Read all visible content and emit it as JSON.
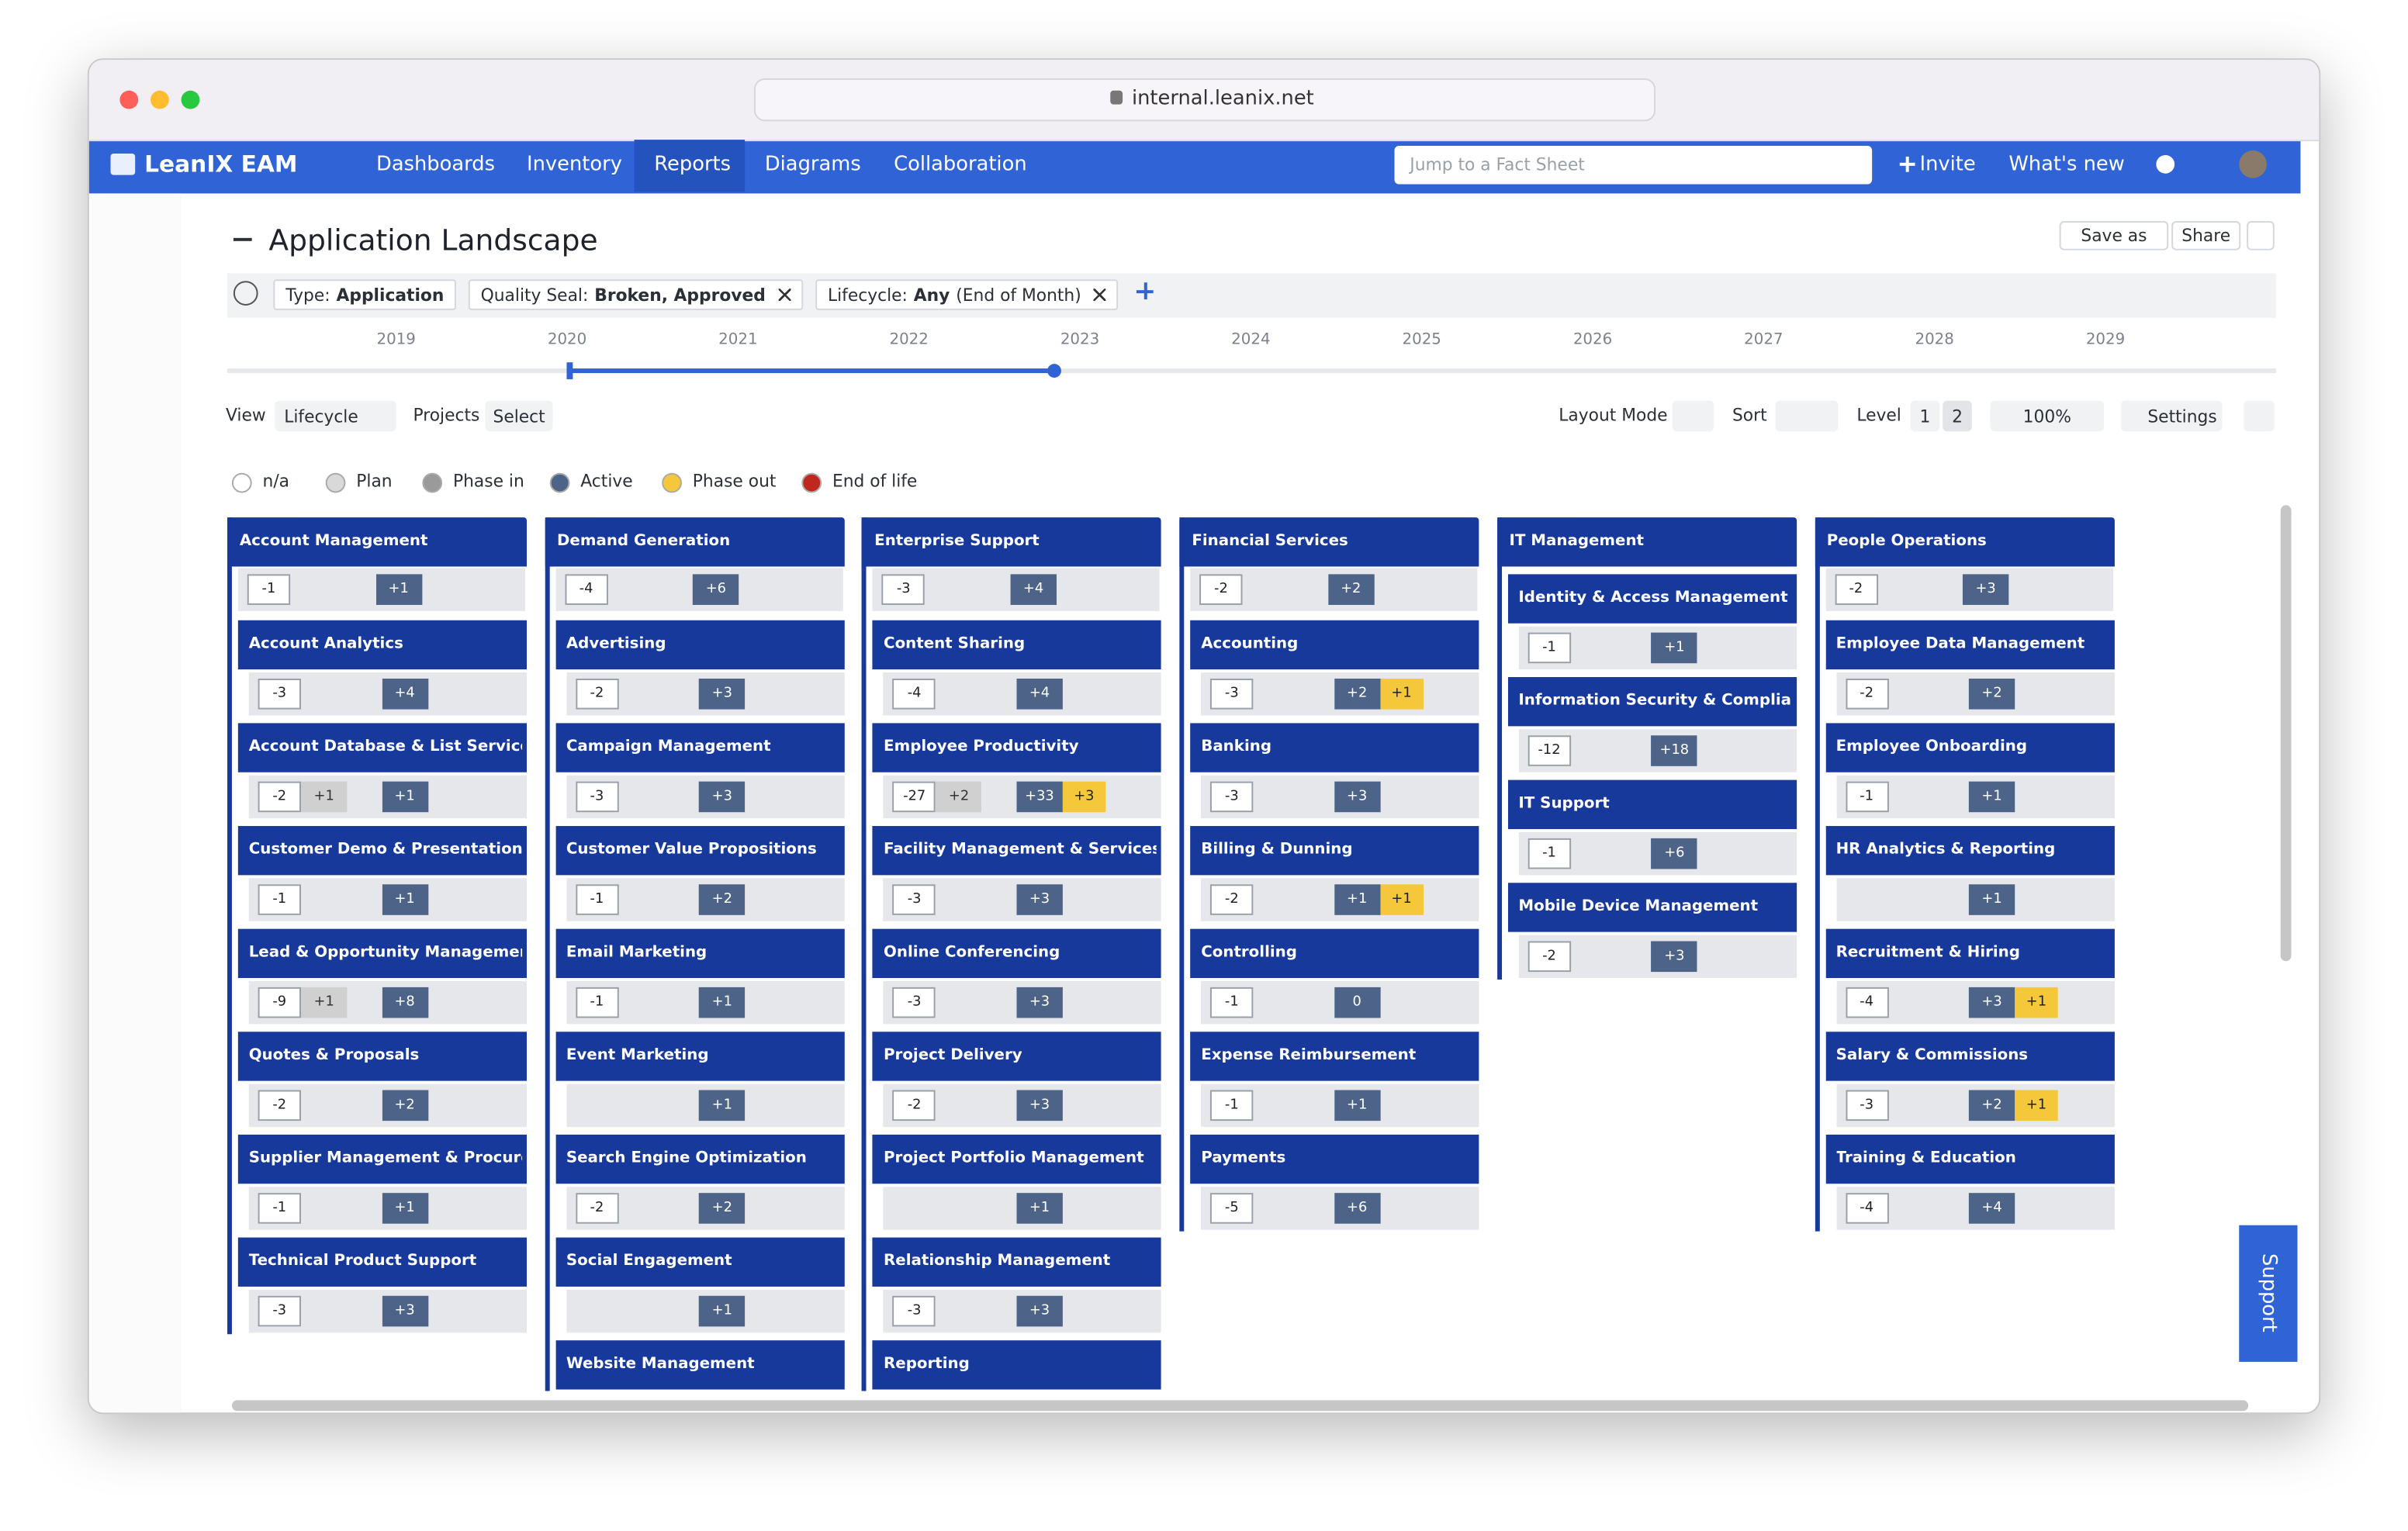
{
  "browser": {
    "url": "internal.leanix.net"
  },
  "nav": {
    "brand": "LeanIX EAM",
    "items": [
      "Dashboards",
      "Inventory",
      "Reports",
      "Diagrams",
      "Collaboration"
    ],
    "active": "Reports",
    "search_placeholder": "Jump to a Fact Sheet",
    "invite": "Invite",
    "whats_new": "What's new"
  },
  "report": {
    "title": "Application Landscape",
    "save_as": "Save as",
    "share": "Share",
    "filters": [
      {
        "label": "Type:",
        "value": "Application",
        "removable": false
      },
      {
        "label": "Quality Seal:",
        "value": "Broken, Approved",
        "removable": true
      },
      {
        "label": "Lifecycle:",
        "value": "Any",
        "suffix": "(End of Month)",
        "removable": true
      }
    ],
    "timeline_years": [
      "2019",
      "2020",
      "2021",
      "2022",
      "2023",
      "2024",
      "2025",
      "2026",
      "2027",
      "2028",
      "2029"
    ],
    "toolbar": {
      "view_label": "View",
      "view": "Lifecycle",
      "projects_label": "Projects",
      "projects": "Select",
      "layout_mode": "Layout Mode",
      "sort": "Sort",
      "level": "Level",
      "levels": [
        "1",
        "2"
      ],
      "zoom": "100%",
      "settings": "Settings"
    },
    "legend": [
      {
        "label": "n/a",
        "color": "#ffffff"
      },
      {
        "label": "Plan",
        "color": "#d9d9d9"
      },
      {
        "label": "Phase in",
        "color": "#9a9a9a"
      },
      {
        "label": "Active",
        "color": "#4d6488"
      },
      {
        "label": "Phase out",
        "color": "#f5c83c"
      },
      {
        "label": "End of life",
        "color": "#c0281e"
      }
    ],
    "columns": [
      {
        "title": "Account Management",
        "summary": [
          {
            "text": "-1",
            "kind": "box"
          },
          {
            "text": "+1",
            "kind": "active"
          }
        ],
        "cards": [
          {
            "title": "Account Analytics",
            "bar": [
              {
                "text": "-3",
                "kind": "box"
              },
              {
                "text": "+4",
                "kind": "active"
              }
            ]
          },
          {
            "title": "Account Database & List Services",
            "bar": [
              {
                "text": "-2",
                "kind": "box"
              },
              {
                "text": "+1",
                "kind": "phase-in"
              },
              {
                "text": "+1",
                "kind": "active"
              }
            ]
          },
          {
            "title": "Customer Demo & Presentation",
            "bar": [
              {
                "text": "-1",
                "kind": "box"
              },
              {
                "text": "+1",
                "kind": "active"
              }
            ]
          },
          {
            "title": "Lead & Opportunity Management",
            "bar": [
              {
                "text": "-9",
                "kind": "box"
              },
              {
                "text": "+1",
                "kind": "phase-in"
              },
              {
                "text": "+8",
                "kind": "active"
              }
            ]
          },
          {
            "title": "Quotes & Proposals",
            "bar": [
              {
                "text": "-2",
                "kind": "box"
              },
              {
                "text": "+2",
                "kind": "active"
              }
            ]
          },
          {
            "title": "Supplier Management & Procurem...",
            "bar": [
              {
                "text": "-1",
                "kind": "box"
              },
              {
                "text": "+1",
                "kind": "active"
              }
            ]
          },
          {
            "title": "Technical Product Support",
            "bar": [
              {
                "text": "-3",
                "kind": "box"
              },
              {
                "text": "+3",
                "kind": "active"
              }
            ]
          }
        ]
      },
      {
        "title": "Demand Generation",
        "summary": [
          {
            "text": "-4",
            "kind": "box"
          },
          {
            "text": "+6",
            "kind": "active"
          }
        ],
        "cards": [
          {
            "title": "Advertising",
            "bar": [
              {
                "text": "-2",
                "kind": "box"
              },
              {
                "text": "+3",
                "kind": "active"
              }
            ]
          },
          {
            "title": "Campaign Management",
            "bar": [
              {
                "text": "-3",
                "kind": "box"
              },
              {
                "text": "+3",
                "kind": "active"
              }
            ]
          },
          {
            "title": "Customer Value Propositions",
            "bar": [
              {
                "text": "-1",
                "kind": "box"
              },
              {
                "text": "+2",
                "kind": "active"
              }
            ]
          },
          {
            "title": "Email Marketing",
            "bar": [
              {
                "text": "-1",
                "kind": "box"
              },
              {
                "text": "+1",
                "kind": "active"
              }
            ]
          },
          {
            "title": "Event Marketing",
            "bar": [
              {
                "text": "+1",
                "kind": "active"
              }
            ]
          },
          {
            "title": "Search Engine Optimization",
            "bar": [
              {
                "text": "-2",
                "kind": "box"
              },
              {
                "text": "+2",
                "kind": "active"
              }
            ]
          },
          {
            "title": "Social Engagement",
            "bar": [
              {
                "text": "+1",
                "kind": "active"
              }
            ]
          },
          {
            "title": "Website Management",
            "bar": []
          }
        ]
      },
      {
        "title": "Enterprise Support",
        "summary": [
          {
            "text": "-3",
            "kind": "box"
          },
          {
            "text": "+4",
            "kind": "active"
          }
        ],
        "cards": [
          {
            "title": "Content Sharing",
            "bar": [
              {
                "text": "-4",
                "kind": "box"
              },
              {
                "text": "+4",
                "kind": "active"
              }
            ]
          },
          {
            "title": "Employee Productivity",
            "bar": [
              {
                "text": "-27",
                "kind": "box"
              },
              {
                "text": "+2",
                "kind": "phase-in"
              },
              {
                "text": "+33",
                "kind": "active"
              },
              {
                "text": "+3",
                "kind": "phase-out"
              }
            ]
          },
          {
            "title": "Facility Management & Services",
            "bar": [
              {
                "text": "-3",
                "kind": "box"
              },
              {
                "text": "+3",
                "kind": "active"
              }
            ]
          },
          {
            "title": "Online Conferencing",
            "bar": [
              {
                "text": "-3",
                "kind": "box"
              },
              {
                "text": "+3",
                "kind": "active"
              }
            ]
          },
          {
            "title": "Project Delivery",
            "bar": [
              {
                "text": "-2",
                "kind": "box"
              },
              {
                "text": "+3",
                "kind": "active"
              }
            ]
          },
          {
            "title": "Project Portfolio Management",
            "bar": [
              {
                "text": "+1",
                "kind": "active"
              }
            ]
          },
          {
            "title": "Relationship Management",
            "bar": [
              {
                "text": "-3",
                "kind": "box"
              },
              {
                "text": "+3",
                "kind": "active"
              }
            ]
          },
          {
            "title": "Reporting",
            "bar": []
          }
        ]
      },
      {
        "title": "Financial Services",
        "summary": [
          {
            "text": "-2",
            "kind": "box"
          },
          {
            "text": "+2",
            "kind": "active"
          }
        ],
        "cards": [
          {
            "title": "Accounting",
            "bar": [
              {
                "text": "-3",
                "kind": "box"
              },
              {
                "text": "+2",
                "kind": "active"
              },
              {
                "text": "+1",
                "kind": "phase-out"
              }
            ]
          },
          {
            "title": "Banking",
            "bar": [
              {
                "text": "-3",
                "kind": "box"
              },
              {
                "text": "+3",
                "kind": "active"
              }
            ]
          },
          {
            "title": "Billing & Dunning",
            "bar": [
              {
                "text": "-2",
                "kind": "box"
              },
              {
                "text": "+1",
                "kind": "active"
              },
              {
                "text": "+1",
                "kind": "phase-out"
              }
            ]
          },
          {
            "title": "Controlling",
            "bar": [
              {
                "text": "-1",
                "kind": "box"
              },
              {
                "text": "0",
                "kind": "active"
              }
            ]
          },
          {
            "title": "Expense Reimbursement",
            "bar": [
              {
                "text": "-1",
                "kind": "box"
              },
              {
                "text": "+1",
                "kind": "active"
              }
            ]
          },
          {
            "title": "Payments",
            "bar": [
              {
                "text": "-5",
                "kind": "box"
              },
              {
                "text": "+6",
                "kind": "active"
              }
            ]
          }
        ]
      },
      {
        "title": "IT Management",
        "cards": [
          {
            "title": "Identity & Access Management",
            "bar": [
              {
                "text": "-1",
                "kind": "box"
              },
              {
                "text": "+1",
                "kind": "active"
              }
            ]
          },
          {
            "title": "Information Security & Compliance",
            "bar": [
              {
                "text": "-12",
                "kind": "box"
              },
              {
                "text": "+18",
                "kind": "active"
              }
            ]
          },
          {
            "title": "IT Support",
            "bar": [
              {
                "text": "-1",
                "kind": "box"
              },
              {
                "text": "+6",
                "kind": "active"
              }
            ]
          },
          {
            "title": "Mobile Device Management",
            "bar": [
              {
                "text": "-2",
                "kind": "box"
              },
              {
                "text": "+3",
                "kind": "active"
              }
            ]
          }
        ]
      },
      {
        "title": "People Operations",
        "summary": [
          {
            "text": "-2",
            "kind": "box"
          },
          {
            "text": "+3",
            "kind": "active"
          }
        ],
        "cards": [
          {
            "title": "Employee Data Management",
            "bar": [
              {
                "text": "-2",
                "kind": "box"
              },
              {
                "text": "+2",
                "kind": "active"
              }
            ]
          },
          {
            "title": "Employee Onboarding",
            "bar": [
              {
                "text": "-1",
                "kind": "box"
              },
              {
                "text": "+1",
                "kind": "active"
              }
            ]
          },
          {
            "title": "HR Analytics & Reporting",
            "bar": [
              {
                "text": "+1",
                "kind": "active"
              }
            ]
          },
          {
            "title": "Recruitment & Hiring",
            "bar": [
              {
                "text": "-4",
                "kind": "box"
              },
              {
                "text": "+3",
                "kind": "active"
              },
              {
                "text": "+1",
                "kind": "phase-out"
              }
            ]
          },
          {
            "title": "Salary & Commissions",
            "bar": [
              {
                "text": "-3",
                "kind": "box"
              },
              {
                "text": "+2",
                "kind": "active"
              },
              {
                "text": "+1",
                "kind": "phase-out"
              }
            ]
          },
          {
            "title": "Training & Education",
            "bar": [
              {
                "text": "-4",
                "kind": "box"
              },
              {
                "text": "+4",
                "kind": "active"
              }
            ]
          }
        ]
      }
    ]
  },
  "support": "Support"
}
